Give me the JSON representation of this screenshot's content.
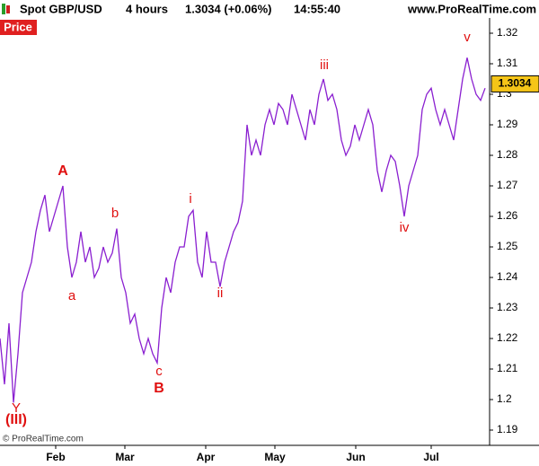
{
  "header": {
    "instrument": "Spot GBP/USD",
    "interval": "4 hours",
    "quote": "1.3034 (+0.06%)",
    "time": "14:55:40",
    "site": "www.ProRealTime.com"
  },
  "panel_label": "Price",
  "copyright": "© ProRealTime.com",
  "chart_data": {
    "type": "line",
    "series": [
      {
        "name": "Spot GBP/USD",
        "color": "#8a1fd0",
        "values": [
          1.22,
          1.205,
          1.225,
          1.199,
          1.215,
          1.235,
          1.24,
          1.245,
          1.255,
          1.262,
          1.267,
          1.255,
          1.26,
          1.265,
          1.27,
          1.25,
          1.24,
          1.245,
          1.255,
          1.245,
          1.25,
          1.24,
          1.243,
          1.25,
          1.245,
          1.248,
          1.256,
          1.24,
          1.235,
          1.225,
          1.228,
          1.22,
          1.215,
          1.22,
          1.215,
          1.212,
          1.23,
          1.24,
          1.235,
          1.245,
          1.25,
          1.25,
          1.26,
          1.262,
          1.245,
          1.24,
          1.255,
          1.245,
          1.245,
          1.237,
          1.245,
          1.25,
          1.255,
          1.258,
          1.265,
          1.29,
          1.28,
          1.285,
          1.28,
          1.29,
          1.295,
          1.29,
          1.297,
          1.295,
          1.29,
          1.3,
          1.295,
          1.29,
          1.285,
          1.295,
          1.29,
          1.3,
          1.305,
          1.298,
          1.3,
          1.295,
          1.285,
          1.28,
          1.283,
          1.29,
          1.285,
          1.29,
          1.295,
          1.29,
          1.275,
          1.268,
          1.275,
          1.28,
          1.278,
          1.27,
          1.26,
          1.27,
          1.275,
          1.28,
          1.295,
          1.3,
          1.302,
          1.295,
          1.29,
          1.295,
          1.29,
          1.285,
          1.295,
          1.305,
          1.312,
          1.305,
          1.3,
          1.298,
          1.302
        ]
      }
    ],
    "last_price": 1.3034,
    "xlim": [
      0,
      109
    ],
    "xticks": [
      {
        "value": 12.4,
        "label": "Feb"
      },
      {
        "value": 27.8,
        "label": "Mar"
      },
      {
        "value": 45.8,
        "label": "Apr"
      },
      {
        "value": 61.2,
        "label": "May"
      },
      {
        "value": 79.2,
        "label": "Jun"
      },
      {
        "value": 96,
        "label": "Jul"
      }
    ],
    "ylim": [
      1.185,
      1.325
    ],
    "yticks": [
      1.19,
      1.2,
      1.21,
      1.22,
      1.23,
      1.24,
      1.25,
      1.26,
      1.27,
      1.28,
      1.29,
      1.3,
      1.31,
      1.32
    ],
    "annotations": [
      "A",
      "b",
      "a",
      "c",
      "B",
      "i",
      "ii",
      "iii",
      "iv",
      "v",
      "Y",
      "(III)"
    ]
  }
}
